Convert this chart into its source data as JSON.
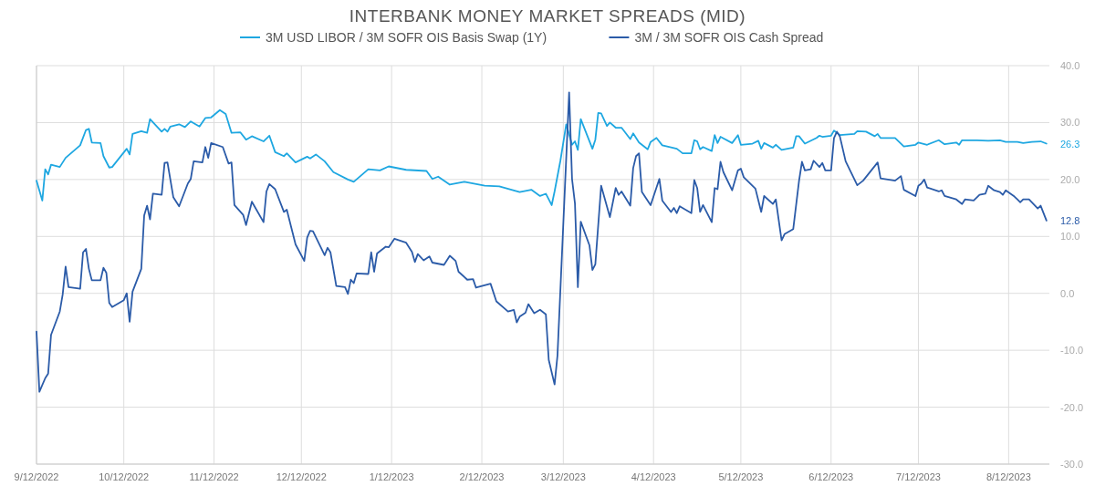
{
  "chart_data": {
    "type": "line",
    "title": "INTERBANK MONEY MARKET SPREADS (MID)",
    "xlim": [
      "2022-09-12",
      "2023-08-26"
    ],
    "xticks": [
      {
        "value": "2022-09-12",
        "label": "9/12/2022"
      },
      {
        "value": "2022-10-12",
        "label": "10/12/2022"
      },
      {
        "value": "2022-11-12",
        "label": "11/12/2022"
      },
      {
        "value": "2022-12-12",
        "label": "12/12/2022"
      },
      {
        "value": "2023-01-12",
        "label": "1/12/2023"
      },
      {
        "value": "2023-02-12",
        "label": "2/12/2023"
      },
      {
        "value": "2023-03-12",
        "label": "3/12/2023"
      },
      {
        "value": "2023-04-12",
        "label": "4/12/2023"
      },
      {
        "value": "2023-05-12",
        "label": "5/12/2023"
      },
      {
        "value": "2023-06-12",
        "label": "6/12/2023"
      },
      {
        "value": "2023-07-12",
        "label": "7/12/2023"
      },
      {
        "value": "2023-08-12",
        "label": "8/12/2023"
      }
    ],
    "ylim": [
      -30,
      40
    ],
    "yticks": [
      {
        "value": -30,
        "label": "-30.0"
      },
      {
        "value": -20,
        "label": "-20.0"
      },
      {
        "value": -10,
        "label": "-10.0"
      },
      {
        "value": 0,
        "label": "0.0"
      },
      {
        "value": 10,
        "label": "10.0"
      },
      {
        "value": 20,
        "label": "20.0"
      },
      {
        "value": 30,
        "label": "30.0"
      },
      {
        "value": 40,
        "label": "40.0"
      }
    ],
    "grid": true,
    "legend": "top",
    "marker": "none",
    "line_style": "solid",
    "annotations": [
      {
        "text": "26.3",
        "x": "2023-08-25",
        "y": 26.3
      },
      {
        "text": "12.8",
        "x": "2023-08-25",
        "y": 12.8
      }
    ],
    "series": [
      {
        "name": "3M USD LIBOR / 3M SOFR OIS Basis Swap (1Y)",
        "color": "#1ea7e1",
        "x": [
          "2022-09-12",
          "2022-09-14",
          "2022-09-15",
          "2022-09-16",
          "2022-09-17",
          "2022-09-20",
          "2022-09-22",
          "2022-09-27",
          "2022-09-29",
          "2022-09-30",
          "2022-10-01",
          "2022-10-04",
          "2022-10-05",
          "2022-10-07",
          "2022-10-08",
          "2022-10-13",
          "2022-10-14",
          "2022-10-15",
          "2022-10-18",
          "2022-10-20",
          "2022-10-21",
          "2022-10-25",
          "2022-10-26",
          "2022-10-27",
          "2022-10-28",
          "2022-10-31",
          "2022-11-02",
          "2022-11-04",
          "2022-11-07",
          "2022-11-09",
          "2022-11-11",
          "2022-11-14",
          "2022-11-16",
          "2022-11-18",
          "2022-11-21",
          "2022-11-23",
          "2022-11-25",
          "2022-11-29",
          "2022-12-01",
          "2022-12-03",
          "2022-12-06",
          "2022-12-07",
          "2022-12-10",
          "2022-12-14",
          "2022-12-15",
          "2022-12-17",
          "2022-12-20",
          "2022-12-23",
          "2022-12-28",
          "2022-12-30",
          "2023-01-04",
          "2023-01-08",
          "2023-01-11",
          "2023-01-17",
          "2023-01-24",
          "2023-01-26",
          "2023-01-28",
          "2023-02-01",
          "2023-02-06",
          "2023-02-13",
          "2023-02-18",
          "2023-02-25",
          "2023-03-01",
          "2023-03-04",
          "2023-03-06",
          "2023-03-08",
          "2023-03-09",
          "2023-03-11",
          "2023-03-13",
          "2023-03-15",
          "2023-03-16",
          "2023-03-17",
          "2023-03-18",
          "2023-03-22",
          "2023-03-23",
          "2023-03-24",
          "2023-03-25",
          "2023-03-27",
          "2023-03-28",
          "2023-03-30",
          "2023-04-01",
          "2023-04-04",
          "2023-04-05",
          "2023-04-07",
          "2023-04-10",
          "2023-04-11",
          "2023-04-13",
          "2023-04-15",
          "2023-04-20",
          "2023-04-22",
          "2023-04-25",
          "2023-04-26",
          "2023-04-27",
          "2023-04-28",
          "2023-04-29",
          "2023-05-02",
          "2023-05-03",
          "2023-05-04",
          "2023-05-05",
          "2023-05-09",
          "2023-05-11",
          "2023-05-12",
          "2023-05-16",
          "2023-05-18",
          "2023-05-19",
          "2023-05-20",
          "2023-05-23",
          "2023-05-24",
          "2023-05-26",
          "2023-05-30",
          "2023-05-31",
          "2023-06-01",
          "2023-06-03",
          "2023-06-07",
          "2023-06-08",
          "2023-06-09",
          "2023-06-12",
          "2023-06-13",
          "2023-06-15",
          "2023-06-20",
          "2023-06-21",
          "2023-06-24",
          "2023-06-27",
          "2023-06-28",
          "2023-06-29",
          "2023-07-04",
          "2023-07-07",
          "2023-07-11",
          "2023-07-12",
          "2023-07-15",
          "2023-07-19",
          "2023-07-21",
          "2023-07-25",
          "2023-07-26",
          "2023-07-27",
          "2023-08-01",
          "2023-08-05",
          "2023-08-09",
          "2023-08-11",
          "2023-08-15",
          "2023-08-17",
          "2023-08-20",
          "2023-08-23",
          "2023-08-25"
        ],
        "values": [
          19.8,
          16.3,
          21.8,
          20.9,
          22.6,
          22.2,
          23.8,
          26.0,
          28.7,
          28.9,
          26.5,
          26.4,
          24.1,
          22.1,
          22.2,
          25.4,
          24.4,
          28.0,
          28.5,
          28.2,
          30.6,
          28.4,
          28.9,
          28.4,
          29.3,
          29.7,
          29.2,
          30.2,
          29.3,
          30.8,
          30.9,
          32.2,
          31.5,
          28.2,
          28.3,
          27.0,
          27.6,
          26.7,
          27.7,
          24.8,
          24.1,
          24.6,
          23.0,
          24.0,
          23.7,
          24.4,
          23.2,
          21.3,
          20.0,
          19.6,
          21.8,
          21.6,
          22.3,
          21.7,
          21.5,
          20.1,
          20.5,
          19.1,
          19.6,
          18.9,
          18.8,
          17.8,
          18.2,
          17.1,
          17.5,
          15.5,
          17.9,
          23.3,
          29.7,
          26.1,
          26.7,
          25.2,
          30.6,
          25.4,
          27.0,
          31.7,
          31.6,
          29.4,
          30.0,
          29.1,
          29.1,
          27.1,
          28.1,
          26.5,
          25.3,
          26.6,
          27.3,
          26.0,
          25.4,
          24.6,
          24.6,
          26.9,
          26.7,
          25.3,
          25.7,
          25.0,
          27.8,
          26.4,
          27.5,
          26.4,
          27.8,
          26.1,
          26.3,
          26.8,
          25.4,
          26.4,
          25.6,
          26.1,
          25.2,
          25.6,
          27.6,
          27.6,
          26.3,
          27.3,
          27.7,
          27.5,
          27.7,
          28.6,
          27.8,
          28.0,
          28.5,
          28.4,
          27.6,
          28.0,
          27.3,
          27.3,
          25.8,
          26.1,
          26.5,
          26.1,
          26.9,
          26.2,
          26.5,
          26.1,
          26.9,
          26.9,
          26.8,
          26.9,
          26.6,
          26.6,
          26.4,
          26.6,
          26.7,
          26.3
        ]
      },
      {
        "name": "3M / 3M SOFR OIS Cash Spread",
        "color": "#2b5ba8",
        "x": [
          "2022-09-12",
          "2022-09-13",
          "2022-09-15",
          "2022-09-16",
          "2022-09-17",
          "2022-09-20",
          "2022-09-21",
          "2022-09-22",
          "2022-09-23",
          "2022-09-27",
          "2022-09-28",
          "2022-09-29",
          "2022-09-30",
          "2022-10-01",
          "2022-10-04",
          "2022-10-05",
          "2022-10-06",
          "2022-10-07",
          "2022-10-08",
          "2022-10-12",
          "2022-10-13",
          "2022-10-14",
          "2022-10-15",
          "2022-10-18",
          "2022-10-19",
          "2022-10-20",
          "2022-10-21",
          "2022-10-22",
          "2022-10-25",
          "2022-10-26",
          "2022-10-27",
          "2022-10-29",
          "2022-10-31",
          "2022-11-03",
          "2022-11-04",
          "2022-11-05",
          "2022-11-08",
          "2022-11-09",
          "2022-11-10",
          "2022-11-11",
          "2022-11-15",
          "2022-11-17",
          "2022-11-18",
          "2022-11-19",
          "2022-11-22",
          "2022-11-23",
          "2022-11-25",
          "2022-11-29",
          "2022-11-30",
          "2022-12-01",
          "2022-12-03",
          "2022-12-06",
          "2022-12-07",
          "2022-12-10",
          "2022-12-13",
          "2022-12-14",
          "2022-12-15",
          "2022-12-16",
          "2022-12-20",
          "2022-12-21",
          "2022-12-22",
          "2022-12-24",
          "2022-12-27",
          "2022-12-28",
          "2022-12-29",
          "2022-12-30",
          "2022-12-31",
          "2023-01-04",
          "2023-01-05",
          "2023-01-06",
          "2023-01-07",
          "2023-01-10",
          "2023-01-11",
          "2023-01-13",
          "2023-01-17",
          "2023-01-19",
          "2023-01-20",
          "2023-01-21",
          "2023-01-23",
          "2023-01-25",
          "2023-01-26",
          "2023-01-30",
          "2023-02-01",
          "2023-02-03",
          "2023-02-04",
          "2023-02-07",
          "2023-02-09",
          "2023-02-10",
          "2023-02-15",
          "2023-02-17",
          "2023-02-21",
          "2023-02-23",
          "2023-02-24",
          "2023-02-25",
          "2023-02-27",
          "2023-02-28",
          "2023-03-02",
          "2023-03-04",
          "2023-03-06",
          "2023-03-07",
          "2023-03-09",
          "2023-03-10",
          "2023-03-14",
          "2023-03-15",
          "2023-03-16",
          "2023-03-17",
          "2023-03-18",
          "2023-03-21",
          "2023-03-22",
          "2023-03-23",
          "2023-03-25",
          "2023-03-28",
          "2023-03-30",
          "2023-03-31",
          "2023-04-01",
          "2023-04-04",
          "2023-04-05",
          "2023-04-06",
          "2023-04-07",
          "2023-04-08",
          "2023-04-11",
          "2023-04-14",
          "2023-04-15",
          "2023-04-18",
          "2023-04-19",
          "2023-04-20",
          "2023-04-21",
          "2023-04-25",
          "2023-04-26",
          "2023-04-27",
          "2023-04-28",
          "2023-04-29",
          "2023-05-02",
          "2023-05-03",
          "2023-05-04",
          "2023-05-05",
          "2023-05-06",
          "2023-05-09",
          "2023-05-11",
          "2023-05-12",
          "2023-05-13",
          "2023-05-17",
          "2023-05-19",
          "2023-05-20",
          "2023-05-23",
          "2023-05-24",
          "2023-05-26",
          "2023-05-27",
          "2023-05-30",
          "2023-06-01",
          "2023-06-02",
          "2023-06-03",
          "2023-06-05",
          "2023-06-06",
          "2023-06-08",
          "2023-06-09",
          "2023-06-10",
          "2023-06-12",
          "2023-06-13",
          "2023-06-14",
          "2023-06-15",
          "2023-06-17",
          "2023-06-21",
          "2023-06-23",
          "2023-06-28",
          "2023-06-29",
          "2023-07-04",
          "2023-07-06",
          "2023-07-07",
          "2023-07-11",
          "2023-07-12",
          "2023-07-13",
          "2023-07-14",
          "2023-07-15",
          "2023-07-19",
          "2023-07-20",
          "2023-07-21",
          "2023-07-25",
          "2023-07-27",
          "2023-07-28",
          "2023-07-31",
          "2023-08-02",
          "2023-08-04",
          "2023-08-05",
          "2023-08-07",
          "2023-08-09",
          "2023-08-10",
          "2023-08-11",
          "2023-08-14",
          "2023-08-15",
          "2023-08-16",
          "2023-08-17",
          "2023-08-19",
          "2023-08-22",
          "2023-08-23",
          "2023-08-25"
        ],
        "values": [
          -6.7,
          -17.3,
          -14.9,
          -14.1,
          -7.3,
          -3.2,
          -0.2,
          4.7,
          1.1,
          0.8,
          7.2,
          7.8,
          4.3,
          2.3,
          2.3,
          4.5,
          3.6,
          -1.7,
          -2.4,
          -1.2,
          0.0,
          -5.0,
          0.3,
          4.3,
          13.7,
          15.4,
          13.0,
          17.5,
          17.3,
          22.9,
          23.0,
          16.9,
          15.3,
          19.3,
          20.1,
          23.2,
          23.0,
          25.7,
          23.8,
          26.4,
          25.7,
          22.8,
          23.0,
          15.5,
          13.8,
          12.0,
          16.1,
          12.5,
          17.9,
          19.2,
          18.3,
          14.3,
          14.7,
          8.6,
          5.7,
          9.8,
          11.0,
          10.9,
          6.7,
          8.0,
          7.2,
          1.3,
          1.1,
          -0.1,
          2.4,
          1.8,
          3.5,
          3.4,
          7.2,
          3.8,
          7.0,
          8.2,
          8.1,
          9.6,
          8.9,
          7.3,
          5.5,
          6.9,
          5.8,
          6.5,
          5.4,
          5.0,
          6.6,
          5.7,
          3.8,
          2.4,
          2.5,
          1.0,
          1.7,
          -1.4,
          -3.2,
          -2.9,
          -5.1,
          -4.1,
          -3.4,
          -1.9,
          -3.5,
          -2.9,
          -3.7,
          -11.7,
          -16.0,
          -10.9,
          35.3,
          20.1,
          15.8,
          1.1,
          12.6,
          8.4,
          4.1,
          5.1,
          18.9,
          13.4,
          18.5,
          17.3,
          17.9,
          15.4,
          22.0,
          24.1,
          24.6,
          17.8,
          15.5,
          20.1,
          16.3,
          14.3,
          15.0,
          14.1,
          15.3,
          14.1,
          19.9,
          18.5,
          14.3,
          15.5,
          12.5,
          18.5,
          18.3,
          23.1,
          21.3,
          18.1,
          21.6,
          21.9,
          20.4,
          18.4,
          14.3,
          17.1,
          15.7,
          16.5,
          9.3,
          10.4,
          11.3,
          19.8,
          23.1,
          21.6,
          21.8,
          23.3,
          22.2,
          22.9,
          21.6,
          21.6,
          27.3,
          28.4,
          27.6,
          23.2,
          19.0,
          19.8,
          23.0,
          20.2,
          19.8,
          20.6,
          18.2,
          17.1,
          18.9,
          19.3,
          20.0,
          18.6,
          17.9,
          18.1,
          17.1,
          16.5,
          15.7,
          16.5,
          16.3,
          17.3,
          17.5,
          18.9,
          18.1,
          17.8,
          17.3,
          18.1,
          17.0,
          16.5,
          16.0,
          16.5,
          16.5,
          14.9,
          15.4,
          12.8
        ]
      }
    ]
  }
}
